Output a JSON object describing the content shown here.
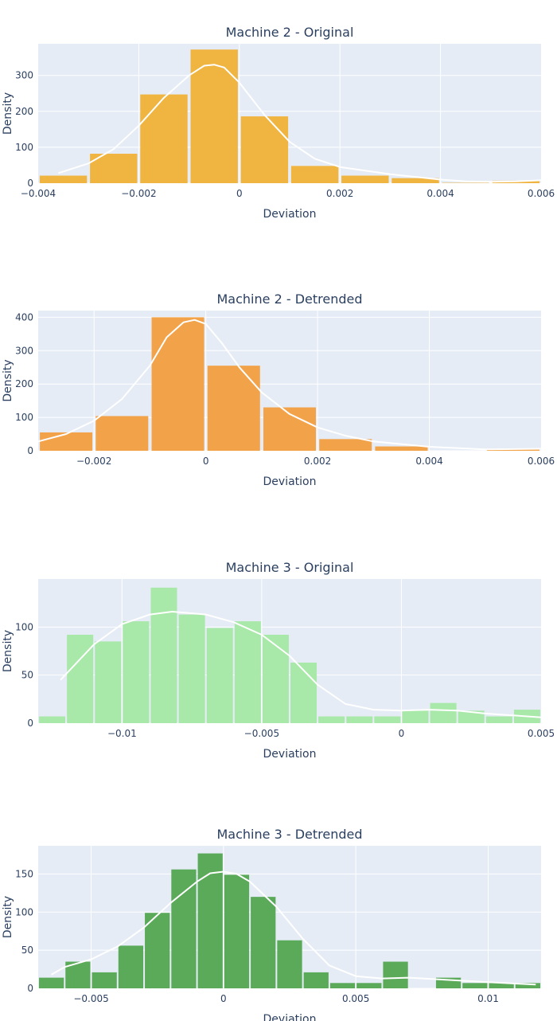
{
  "figure": {
    "background": "#ffffff",
    "plot_background": "#e5ecf6",
    "grid_color": "#ffffff",
    "text_color": "#2a3f5f",
    "kde_color": "#ffffff"
  },
  "chart_data": [
    {
      "type": "bar",
      "title": "Machine 2 - Original",
      "xlabel": "Deviation",
      "ylabel": "Density",
      "color": "#f0b440",
      "xlim": [
        -0.004,
        0.006
      ],
      "ylim": [
        0,
        388
      ],
      "xticks": [
        -0.004,
        -0.002,
        0,
        0.002,
        0.004,
        0.006
      ],
      "xtick_labels": [
        "−0.004",
        "−0.002",
        "0",
        "0.002",
        "0.004",
        "0.006"
      ],
      "yticks": [
        0,
        100,
        200,
        300
      ],
      "bin_width": 0.001,
      "bins": [
        -0.004,
        -0.003,
        -0.002,
        -0.001,
        0,
        0.001,
        0.002,
        0.003,
        0.004,
        0.005
      ],
      "values": [
        21,
        82,
        247,
        372,
        186,
        48,
        21,
        14,
        1,
        7
      ],
      "kde_x": [
        -0.0036,
        -0.003,
        -0.0025,
        -0.002,
        -0.0015,
        -0.001,
        -0.0007,
        -0.0005,
        -0.0003,
        0,
        0.0005,
        0.001,
        0.0015,
        0.002,
        0.003,
        0.004,
        0.0045,
        0.005,
        0.0055,
        0.006
      ],
      "kde_y": [
        28,
        55,
        95,
        160,
        238,
        300,
        327,
        330,
        322,
        280,
        190,
        115,
        68,
        45,
        25,
        10,
        5,
        4,
        5,
        8
      ]
    },
    {
      "type": "bar",
      "title": "Machine 2 - Detrended",
      "xlabel": "Deviation",
      "ylabel": "Density",
      "color": "#f2a34a",
      "xlim": [
        -0.003,
        0.006
      ],
      "ylim": [
        0,
        420
      ],
      "xticks": [
        -0.002,
        0,
        0.002,
        0.004,
        0.006
      ],
      "xtick_labels": [
        "−0.002",
        "0",
        "0.002",
        "0.004",
        "0.006"
      ],
      "yticks": [
        0,
        100,
        200,
        300,
        400
      ],
      "bin_width": 0.001,
      "bins": [
        -0.003,
        -0.002,
        -0.001,
        0,
        0.001,
        0.002,
        0.003,
        0.004,
        0.005
      ],
      "values": [
        55,
        104,
        400,
        255,
        130,
        35,
        13,
        0,
        5
      ],
      "kde_x": [
        -0.003,
        -0.0025,
        -0.002,
        -0.0015,
        -0.001,
        -0.0007,
        -0.0004,
        -0.0002,
        0,
        0.0003,
        0.0006,
        0.001,
        0.0015,
        0.002,
        0.0025,
        0.003,
        0.004,
        0.005,
        0.006
      ],
      "kde_y": [
        28,
        50,
        90,
        155,
        255,
        340,
        385,
        392,
        380,
        320,
        250,
        175,
        110,
        70,
        45,
        28,
        12,
        4,
        6
      ]
    },
    {
      "type": "bar",
      "title": "Machine 3 - Original",
      "xlabel": "Deviation",
      "ylabel": "Density",
      "color": "#a8e8a8",
      "xlim": [
        -0.013,
        0.005
      ],
      "ylim": [
        0,
        150
      ],
      "xticks": [
        -0.01,
        -0.005,
        0,
        0.005
      ],
      "xtick_labels": [
        "−0.01",
        "−0.005",
        "0",
        "0.005"
      ],
      "yticks": [
        0,
        50,
        100
      ],
      "bin_width": 0.001,
      "bins": [
        -0.013,
        -0.012,
        -0.011,
        -0.01,
        -0.009,
        -0.008,
        -0.007,
        -0.006,
        -0.005,
        -0.004,
        -0.003,
        -0.002,
        -0.001,
        0,
        0.001,
        0.002,
        0.003,
        0.004
      ],
      "values": [
        7,
        92,
        85,
        106,
        141,
        113,
        99,
        106,
        92,
        63,
        7,
        7,
        7,
        13,
        21,
        13,
        7,
        14
      ],
      "kde_x": [
        -0.0122,
        -0.011,
        -0.01,
        -0.009,
        -0.0082,
        -0.007,
        -0.006,
        -0.005,
        -0.004,
        -0.003,
        -0.002,
        -0.001,
        0,
        0.001,
        0.002,
        0.003,
        0.004,
        0.005
      ],
      "kde_y": [
        45,
        82,
        103,
        113,
        116,
        113,
        105,
        92,
        70,
        40,
        20,
        14,
        13,
        14,
        13,
        10,
        8,
        6
      ]
    },
    {
      "type": "bar",
      "title": "Machine 3 - Detrended",
      "xlabel": "Deviation",
      "ylabel": "Density",
      "color": "#5aaa5a",
      "xlim": [
        -0.007,
        0.012
      ],
      "ylim": [
        0,
        187
      ],
      "xticks": [
        -0.005,
        0,
        0.005,
        0.01
      ],
      "xtick_labels": [
        "−0.005",
        "0",
        "0.005",
        "0.01"
      ],
      "yticks": [
        0,
        50,
        100,
        150
      ],
      "bin_width": 0.001,
      "bins": [
        -0.007,
        -0.006,
        -0.005,
        -0.004,
        -0.003,
        -0.002,
        -0.001,
        0,
        0.001,
        0.002,
        0.003,
        0.004,
        0.005,
        0.006,
        0.007,
        0.008,
        0.009,
        0.01,
        0.011
      ],
      "values": [
        14,
        35,
        21,
        56,
        99,
        156,
        177,
        149,
        120,
        63,
        21,
        7,
        7,
        35,
        0,
        14,
        7,
        7,
        7
      ],
      "kde_x": [
        -0.0065,
        -0.006,
        -0.005,
        -0.004,
        -0.003,
        -0.002,
        -0.001,
        -0.0005,
        0,
        0.0005,
        0.001,
        0.002,
        0.003,
        0.004,
        0.005,
        0.006,
        0.007,
        0.008,
        0.009,
        0.01,
        0.0118
      ],
      "kde_y": [
        18,
        28,
        38,
        55,
        80,
        112,
        140,
        151,
        153,
        150,
        140,
        107,
        65,
        30,
        16,
        13,
        14,
        12,
        10,
        8,
        5
      ]
    }
  ]
}
